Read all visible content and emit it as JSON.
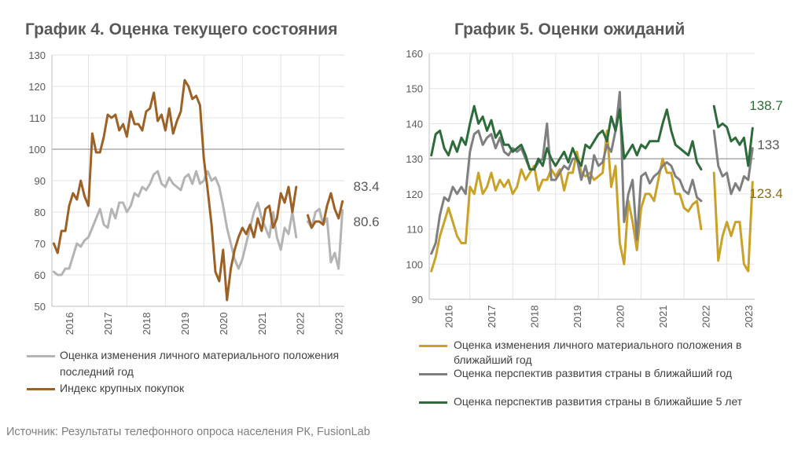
{
  "source": "Источник: Результаты телефонного опроса населения РК, FusionLab",
  "chart_data": [
    {
      "type": "line",
      "title": "График 4. Оценка текущего состояния",
      "ylim": [
        50,
        130
      ],
      "yticks": [
        50,
        60,
        70,
        80,
        90,
        100,
        110,
        120,
        130
      ],
      "xlim": [
        2015.55,
        2023.15
      ],
      "xticks": [
        "2016",
        "2017",
        "2018",
        "2019",
        "2020",
        "2021",
        "2022",
        "2023"
      ],
      "grid": true,
      "reference_line": 100,
      "legend_position": "bottom",
      "series": [
        {
          "name": "Оценка изменения личного материального положения за последний год",
          "legend_label": "Оценка изменения личного материального положения",
          "legend_label_2": "последний год",
          "color": "#b4b4b4",
          "end_label": "80.6",
          "x": [
            2015.6,
            2015.7,
            2015.8,
            2015.9,
            2016.0,
            2016.1,
            2016.2,
            2016.3,
            2016.4,
            2016.5,
            2016.6,
            2016.7,
            2016.8,
            2016.9,
            2017.0,
            2017.1,
            2017.2,
            2017.3,
            2017.4,
            2017.5,
            2017.6,
            2017.7,
            2017.8,
            2017.9,
            2018.0,
            2018.1,
            2018.2,
            2018.3,
            2018.4,
            2018.5,
            2018.6,
            2018.7,
            2018.8,
            2018.9,
            2019.0,
            2019.1,
            2019.2,
            2019.3,
            2019.4,
            2019.5,
            2019.6,
            2019.7,
            2019.8,
            2019.9,
            2020.0,
            2020.1,
            2020.2,
            2020.3,
            2020.4,
            2020.5,
            2020.6,
            2020.7,
            2020.8,
            2020.9,
            2021.0,
            2021.1,
            2021.2,
            2021.3,
            2021.4,
            2021.5,
            2021.6,
            2021.7,
            2021.8,
            2021.9,
            2022.2,
            2022.3,
            2022.4,
            2022.5,
            2022.6,
            2022.7,
            2022.8,
            2022.9,
            2023.0,
            2023.1
          ],
          "values": [
            61,
            60,
            60,
            62,
            62,
            66,
            70,
            69,
            71,
            72,
            75,
            78,
            81,
            76,
            75,
            81,
            78,
            83,
            83,
            80,
            82,
            86,
            85,
            88,
            87,
            89,
            92,
            93,
            89,
            88,
            91,
            89,
            88,
            87,
            91,
            92,
            89,
            93,
            89,
            90,
            93,
            90,
            91,
            88,
            82,
            75,
            70,
            65,
            62,
            65,
            70,
            75,
            80,
            83,
            78,
            75,
            72,
            80,
            72,
            68,
            75,
            73,
            80,
            72,
            77,
            75,
            80,
            81,
            76,
            78,
            64,
            67,
            62,
            80.6
          ]
        },
        {
          "name": "Индекс крупных покупок",
          "color": "#9c6225",
          "end_label": "83.4",
          "x": [
            2015.6,
            2015.7,
            2015.8,
            2015.9,
            2016.0,
            2016.1,
            2016.2,
            2016.3,
            2016.4,
            2016.5,
            2016.6,
            2016.7,
            2016.8,
            2016.9,
            2017.0,
            2017.1,
            2017.2,
            2017.3,
            2017.4,
            2017.5,
            2017.6,
            2017.7,
            2017.8,
            2017.9,
            2018.0,
            2018.1,
            2018.2,
            2018.3,
            2018.4,
            2018.5,
            2018.6,
            2018.7,
            2018.8,
            2018.9,
            2019.0,
            2019.1,
            2019.2,
            2019.3,
            2019.4,
            2019.5,
            2019.6,
            2019.7,
            2019.8,
            2019.9,
            2020.0,
            2020.1,
            2020.2,
            2020.3,
            2020.4,
            2020.5,
            2020.6,
            2020.7,
            2020.8,
            2020.9,
            2021.0,
            2021.1,
            2021.2,
            2021.3,
            2021.4,
            2021.5,
            2021.6,
            2021.7,
            2021.8,
            2021.9,
            2022.2,
            2022.3,
            2022.4,
            2022.5,
            2022.6,
            2022.7,
            2022.8,
            2022.9,
            2023.0,
            2023.1
          ],
          "values": [
            70,
            67,
            74,
            74,
            82,
            86,
            84,
            90,
            85,
            82,
            105,
            99,
            99,
            104,
            111,
            110,
            111,
            106,
            108,
            104,
            112,
            108,
            108,
            106,
            112,
            113,
            118,
            109,
            111,
            106,
            113,
            105,
            109,
            112,
            122,
            120,
            116,
            117,
            114,
            97,
            87,
            76,
            61,
            58,
            68,
            52,
            62,
            68,
            72,
            75,
            73,
            76,
            72,
            78,
            74,
            81,
            82,
            75,
            78,
            86,
            83,
            88,
            80,
            88,
            79,
            75,
            77,
            77,
            76,
            82,
            86,
            81,
            78,
            83.4
          ]
        }
      ]
    },
    {
      "type": "line",
      "title": "График 5. Оценки ожиданий",
      "ylim": [
        90,
        160
      ],
      "yticks": [
        90,
        100,
        110,
        120,
        130,
        140,
        150,
        160
      ],
      "xlim": [
        2015.55,
        2023.15
      ],
      "xticks": [
        "2016",
        "2017",
        "2018",
        "2019",
        "2020",
        "2021",
        "2022",
        "2023"
      ],
      "grid": true,
      "reference_line": 130,
      "legend_position": "bottom",
      "series": [
        {
          "name": "Оценка изменения личного материального положения в ближайший год",
          "legend_label": "Оценка изменения личного материального положения в",
          "legend_label_2": "ближайший год",
          "color": "#c9a227",
          "end_label": "123.4",
          "x": [
            2015.6,
            2015.7,
            2015.8,
            2015.9,
            2016.0,
            2016.1,
            2016.2,
            2016.3,
            2016.4,
            2016.5,
            2016.6,
            2016.7,
            2016.8,
            2016.9,
            2017.0,
            2017.1,
            2017.2,
            2017.3,
            2017.4,
            2017.5,
            2017.6,
            2017.7,
            2017.8,
            2017.9,
            2018.0,
            2018.1,
            2018.2,
            2018.3,
            2018.4,
            2018.5,
            2018.6,
            2018.7,
            2018.8,
            2018.9,
            2019.0,
            2019.1,
            2019.2,
            2019.3,
            2019.4,
            2019.5,
            2019.6,
            2019.7,
            2019.8,
            2019.9,
            2020.0,
            2020.1,
            2020.2,
            2020.3,
            2020.4,
            2020.5,
            2020.6,
            2020.7,
            2020.8,
            2020.9,
            2021.0,
            2021.1,
            2021.2,
            2021.3,
            2021.4,
            2021.5,
            2021.6,
            2021.7,
            2021.8,
            2021.9,
            2022.2,
            2022.3,
            2022.4,
            2022.5,
            2022.6,
            2022.7,
            2022.8,
            2022.9,
            2023.0,
            2023.1
          ],
          "values": [
            98,
            102,
            108,
            112,
            116,
            112,
            108,
            106,
            106,
            122,
            120,
            126,
            120,
            122,
            126,
            121,
            124,
            122,
            124,
            120,
            122,
            127,
            124,
            126,
            128,
            121,
            124,
            124,
            127,
            125,
            127,
            121,
            126,
            126,
            132,
            126,
            125,
            126,
            124,
            125,
            126,
            138,
            122,
            128,
            106,
            100,
            118,
            112,
            104,
            116,
            120,
            120,
            118,
            124,
            130,
            126,
            126,
            120,
            120,
            116,
            115,
            117,
            118,
            110,
            126,
            101,
            108,
            112,
            108,
            112,
            112,
            100,
            98,
            123.4
          ]
        },
        {
          "name": "Оценка перспектив развития страны в ближайший год",
          "color": "#7f7f7f",
          "end_label": "133",
          "x": [
            2015.6,
            2015.7,
            2015.8,
            2015.9,
            2016.0,
            2016.1,
            2016.2,
            2016.3,
            2016.4,
            2016.5,
            2016.6,
            2016.7,
            2016.8,
            2016.9,
            2017.0,
            2017.1,
            2017.2,
            2017.3,
            2017.4,
            2017.5,
            2017.6,
            2017.7,
            2017.8,
            2017.9,
            2018.0,
            2018.1,
            2018.2,
            2018.3,
            2018.4,
            2018.5,
            2018.6,
            2018.7,
            2018.8,
            2018.9,
            2019.0,
            2019.1,
            2019.2,
            2019.3,
            2019.4,
            2019.5,
            2019.6,
            2019.7,
            2019.8,
            2019.9,
            2020.0,
            2020.1,
            2020.2,
            2020.3,
            2020.4,
            2020.5,
            2020.6,
            2020.7,
            2020.8,
            2020.9,
            2021.0,
            2021.1,
            2021.2,
            2021.3,
            2021.4,
            2021.5,
            2021.6,
            2021.7,
            2021.8,
            2021.9,
            2022.2,
            2022.3,
            2022.4,
            2022.5,
            2022.6,
            2022.7,
            2022.8,
            2022.9,
            2023.0,
            2023.1
          ],
          "values": [
            103,
            106,
            114,
            119,
            118,
            122,
            120,
            122,
            120,
            132,
            137,
            138,
            134,
            136,
            137,
            133,
            136,
            132,
            131,
            133,
            132,
            133,
            130,
            127,
            127,
            129,
            130,
            140,
            124,
            124,
            126,
            128,
            127,
            130,
            130,
            124,
            128,
            123,
            131,
            128,
            129,
            134,
            132,
            138,
            149,
            112,
            120,
            124,
            107,
            125,
            126,
            123,
            125,
            126,
            128,
            129,
            128,
            125,
            124,
            121,
            120,
            124,
            119,
            118,
            138,
            128,
            125,
            126,
            120,
            123,
            121,
            125,
            124,
            133
          ]
        },
        {
          "name": "Оценка перспектив развития страны в ближайшие 5 лет",
          "color": "#2e6b3b",
          "end_label": "138.7",
          "x": [
            2015.6,
            2015.7,
            2015.8,
            2015.9,
            2016.0,
            2016.1,
            2016.2,
            2016.3,
            2016.4,
            2016.5,
            2016.6,
            2016.7,
            2016.8,
            2016.9,
            2017.0,
            2017.1,
            2017.2,
            2017.3,
            2017.4,
            2017.5,
            2017.6,
            2017.7,
            2017.8,
            2017.9,
            2018.0,
            2018.1,
            2018.2,
            2018.3,
            2018.4,
            2018.5,
            2018.6,
            2018.7,
            2018.8,
            2018.9,
            2019.0,
            2019.1,
            2019.2,
            2019.3,
            2019.4,
            2019.5,
            2019.6,
            2019.7,
            2019.8,
            2019.9,
            2020.0,
            2020.1,
            2020.2,
            2020.3,
            2020.4,
            2020.5,
            2020.6,
            2020.7,
            2020.8,
            2020.9,
            2021.0,
            2021.1,
            2021.2,
            2021.3,
            2021.4,
            2021.5,
            2021.6,
            2021.7,
            2021.8,
            2021.9,
            2022.2,
            2022.3,
            2022.4,
            2022.5,
            2022.6,
            2022.7,
            2022.8,
            2022.9,
            2023.0,
            2023.1
          ],
          "values": [
            131,
            137,
            138,
            133,
            131,
            135,
            132,
            136,
            134,
            140,
            145,
            140,
            142,
            138,
            141,
            136,
            138,
            134,
            134,
            132,
            133,
            134,
            131,
            127,
            127,
            130,
            128,
            133,
            130,
            128,
            130,
            132,
            129,
            133,
            130,
            128,
            134,
            133,
            135,
            137,
            138,
            135,
            142,
            138,
            144,
            130,
            132,
            134,
            131,
            134,
            133,
            135,
            135,
            135,
            140,
            144,
            138,
            134,
            133,
            132,
            131,
            135,
            129,
            127,
            145,
            139,
            140,
            139,
            135,
            136,
            134,
            136,
            128,
            138.7
          ]
        }
      ]
    }
  ]
}
